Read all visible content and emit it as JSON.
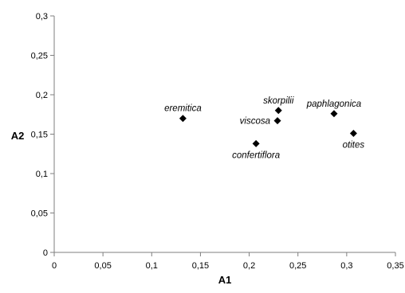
{
  "chart_data": {
    "type": "scatter",
    "xlabel": "A1",
    "ylabel": "A2",
    "xlim": [
      0,
      0.35
    ],
    "ylim": [
      0,
      0.3
    ],
    "grid": false,
    "legend": "none",
    "marker": "diamond",
    "marker_color": "#000000",
    "x_ticks": [
      0,
      0.05,
      0.1,
      0.15,
      0.2,
      0.25,
      0.3,
      0.35
    ],
    "x_tick_labels": [
      "0",
      "0,05",
      "0,1",
      "0,15",
      "0,2",
      "0,25",
      "0,3",
      "0,35"
    ],
    "y_ticks": [
      0,
      0.05,
      0.1,
      0.15,
      0.2,
      0.25,
      0.3
    ],
    "y_tick_labels": [
      "0",
      "0,05",
      "0,1",
      "0,15",
      "0,2",
      "0,25",
      "0,3"
    ],
    "points": [
      {
        "label": "eremitica",
        "x": 0.132,
        "y": 0.17,
        "label_pos": "above"
      },
      {
        "label": "skorpilii",
        "x": 0.23,
        "y": 0.18,
        "label_pos": "above"
      },
      {
        "label": "viscosa",
        "x": 0.229,
        "y": 0.167,
        "label_pos": "left"
      },
      {
        "label": "confertiflora",
        "x": 0.207,
        "y": 0.138,
        "label_pos": "below"
      },
      {
        "label": "paphlagonica",
        "x": 0.287,
        "y": 0.176,
        "label_pos": "above"
      },
      {
        "label": "otites",
        "x": 0.307,
        "y": 0.151,
        "label_pos": "below"
      }
    ]
  }
}
